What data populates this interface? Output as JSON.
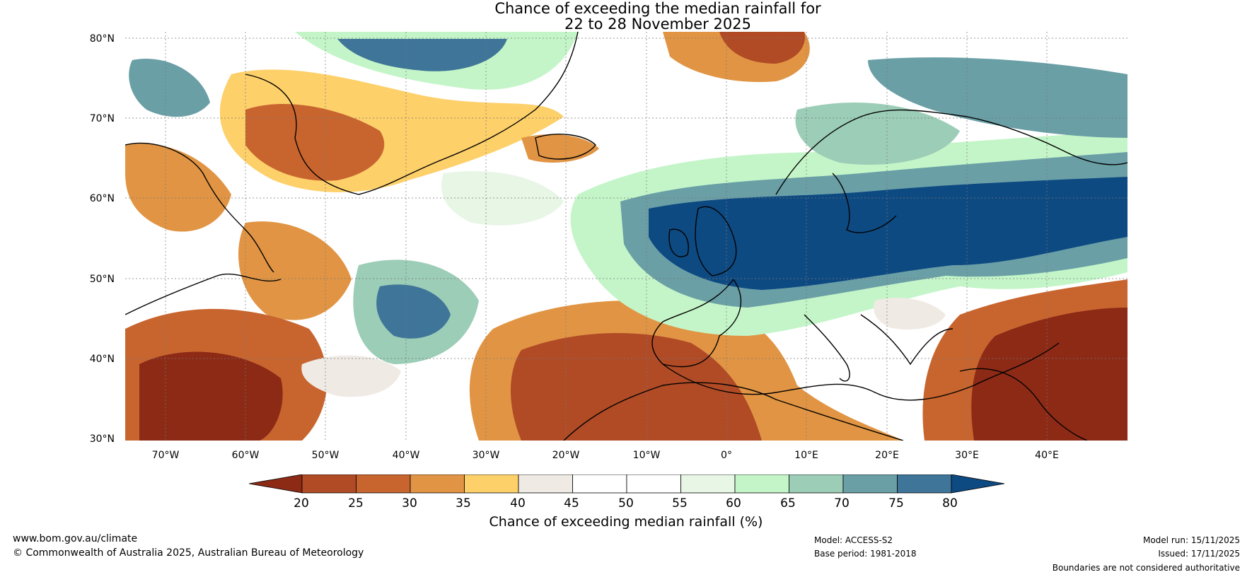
{
  "title": {
    "line1": "Chance of exceeding the median rainfall for",
    "line2": "22 to 28 November 2025"
  },
  "map": {
    "lat_labels": [
      "80°N",
      "70°N",
      "60°N",
      "50°N",
      "40°N",
      "30°N"
    ],
    "lon_labels": [
      "70°W",
      "60°W",
      "50°W",
      "40°W",
      "30°W",
      "20°W",
      "10°W",
      "0°",
      "10°E",
      "20°E",
      "30°E",
      "40°E"
    ],
    "lat_range": [
      30,
      81
    ],
    "lon_range": [
      -75,
      50
    ]
  },
  "legend": {
    "label": "Chance of exceeding median rainfall (%)",
    "ticks": [
      "20",
      "25",
      "30",
      "35",
      "40",
      "45",
      "50",
      "55",
      "60",
      "65",
      "70",
      "75",
      "80"
    ],
    "colors": [
      "#8c2a16",
      "#b04b26",
      "#c8652f",
      "#e19544",
      "#fdd06a",
      "#efeae4",
      "#ffffff",
      "#ffffff",
      "#e8f6e6",
      "#c4f5c8",
      "#9ccdb7",
      "#6a9fa6",
      "#3f7598",
      "#0e4a82"
    ]
  },
  "footer": {
    "website": "www.bom.gov.au/climate",
    "copyright": "© Commonwealth of Australia 2025, Australian Bureau of Meteorology",
    "model": "Model: ACCESS-S2",
    "base_period": "Base period: 1981-2018",
    "model_run": "Model run: 15/11/2025",
    "issued": "Issued: 17/11/2025",
    "disclaimer": "Boundaries are not considered authoritative"
  }
}
